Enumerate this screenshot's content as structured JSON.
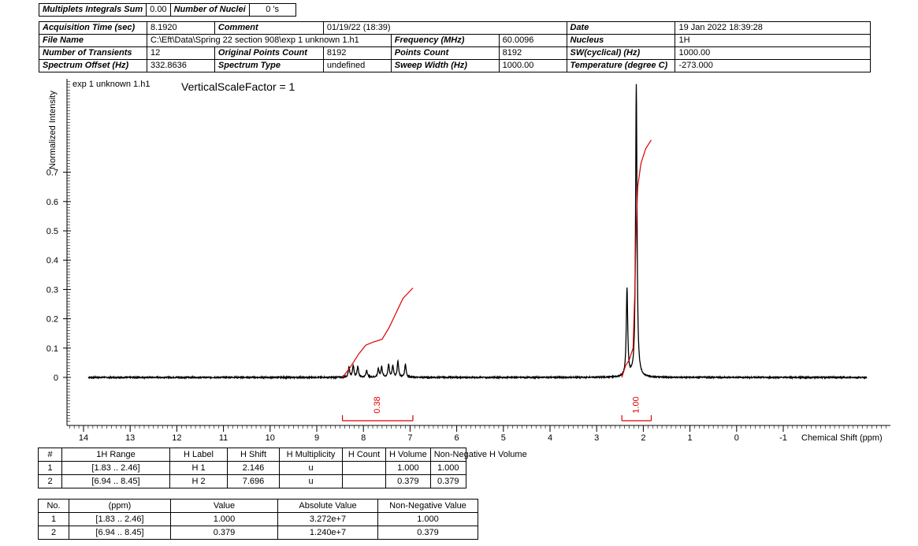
{
  "summary": {
    "integrals_label": "Multiplets Integrals Sum",
    "integrals_value": "0.00",
    "nuclei_label": "Number of Nuclei",
    "nuclei_value": "0 's"
  },
  "params": {
    "acq_time_label": "Acquisition Time (sec)",
    "acq_time": "8.1920",
    "comment_label": "Comment",
    "comment": "01/19/22 (18:39)",
    "date_label": "Date",
    "date": "19 Jan 2022 18:39:28",
    "file_name_label": "File Name",
    "file_name": "C:\\Eft\\Data\\Spring 22 section 908\\exp 1 unknown 1.h1",
    "frequency_label": "Frequency (MHz)",
    "frequency": "60.0096",
    "nucleus_label": "Nucleus",
    "nucleus": "1H",
    "transients_label": "Number of Transients",
    "transients": "12",
    "orig_points_label": "Original Points Count",
    "orig_points": "8192",
    "points_label": "Points Count",
    "points": "8192",
    "sw_label": "SW(cyclical) (Hz)",
    "sw": "1000.00",
    "offset_label": "Spectrum Offset (Hz)",
    "offset": "332.8636",
    "spec_type_label": "Spectrum Type",
    "spec_type": "undefined",
    "sweep_label": "Sweep Width (Hz)",
    "sweep": "1000.00",
    "temp_label": "Temperature (degree C)",
    "temp": "-273.000"
  },
  "chart_data": {
    "type": "line",
    "spectrum_name": "exp 1 unknown 1.h1",
    "annotation": "VerticalScaleFactor = 1",
    "xlabel": "Chemical Shift (ppm)",
    "ylabel": "Normalized Intensity",
    "xlim": [
      14.3,
      -1.4
    ],
    "ylim": [
      0,
      1.0
    ],
    "x_ticks": [
      "14",
      "13",
      "12",
      "11",
      "10",
      "9",
      "8",
      "7",
      "6",
      "5",
      "4",
      "3",
      "2",
      "1",
      "0",
      "-1"
    ],
    "y_ticks": [
      "0",
      "0.1",
      "0.2",
      "0.3",
      "0.4",
      "0.5",
      "0.6",
      "0.7"
    ],
    "grid": false,
    "colors": {
      "spectrum": "#000000",
      "integral": "#dd0000"
    },
    "peaks": [
      {
        "ppm": 8.31,
        "height": 0.035
      },
      {
        "ppm": 8.22,
        "height": 0.04
      },
      {
        "ppm": 8.12,
        "height": 0.037
      },
      {
        "ppm": 7.93,
        "height": 0.025
      },
      {
        "ppm": 7.68,
        "height": 0.028
      },
      {
        "ppm": 7.61,
        "height": 0.035
      },
      {
        "ppm": 7.46,
        "height": 0.043
      },
      {
        "ppm": 7.37,
        "height": 0.038
      },
      {
        "ppm": 7.26,
        "height": 0.054
      },
      {
        "ppm": 7.1,
        "height": 0.045
      },
      {
        "ppm": 2.35,
        "height": 0.3
      },
      {
        "ppm": 2.15,
        "height": 1.0
      }
    ],
    "integrals": [
      {
        "range": [
          8.45,
          6.94
        ],
        "value": "0.38",
        "curve": [
          [
            8.45,
            0.0
          ],
          [
            8.3,
            0.03
          ],
          [
            8.1,
            0.08
          ],
          [
            7.95,
            0.11
          ],
          [
            7.8,
            0.12
          ],
          [
            7.6,
            0.13
          ],
          [
            7.45,
            0.17
          ],
          [
            7.3,
            0.22
          ],
          [
            7.15,
            0.27
          ],
          [
            6.94,
            0.305
          ]
        ]
      },
      {
        "range": [
          2.46,
          1.83
        ],
        "value": "1.00",
        "curve": [
          [
            2.46,
            0.0
          ],
          [
            2.38,
            0.04
          ],
          [
            2.3,
            0.06
          ],
          [
            2.22,
            0.1
          ],
          [
            2.18,
            0.3
          ],
          [
            2.15,
            0.52
          ],
          [
            2.12,
            0.65
          ],
          [
            2.05,
            0.73
          ],
          [
            1.95,
            0.78
          ],
          [
            1.83,
            0.81
          ]
        ]
      }
    ]
  },
  "mult_table": {
    "headers": [
      "#",
      "1H Range",
      "H Label",
      "H Shift",
      "H Multiplicity",
      "H Count",
      "H Volume",
      "Non-Negative H Volume"
    ],
    "rows": [
      [
        "1",
        "[1.83 .. 2.46]",
        "H 1",
        "2.146",
        "u",
        "",
        "1.000",
        "1.000"
      ],
      [
        "2",
        "[6.94 .. 8.45]",
        "H 2",
        "7.696",
        "u",
        "",
        "0.379",
        "0.379"
      ]
    ]
  },
  "int_table": {
    "headers": [
      "No.",
      "(ppm)",
      "Value",
      "Absolute Value",
      "Non-Negative Value"
    ],
    "rows": [
      [
        "1",
        "[1.83 .. 2.46]",
        "1.000",
        "3.272e+7",
        "1.000"
      ],
      [
        "2",
        "[6.94 .. 8.45]",
        "0.379",
        "1.240e+7",
        "0.379"
      ]
    ]
  }
}
